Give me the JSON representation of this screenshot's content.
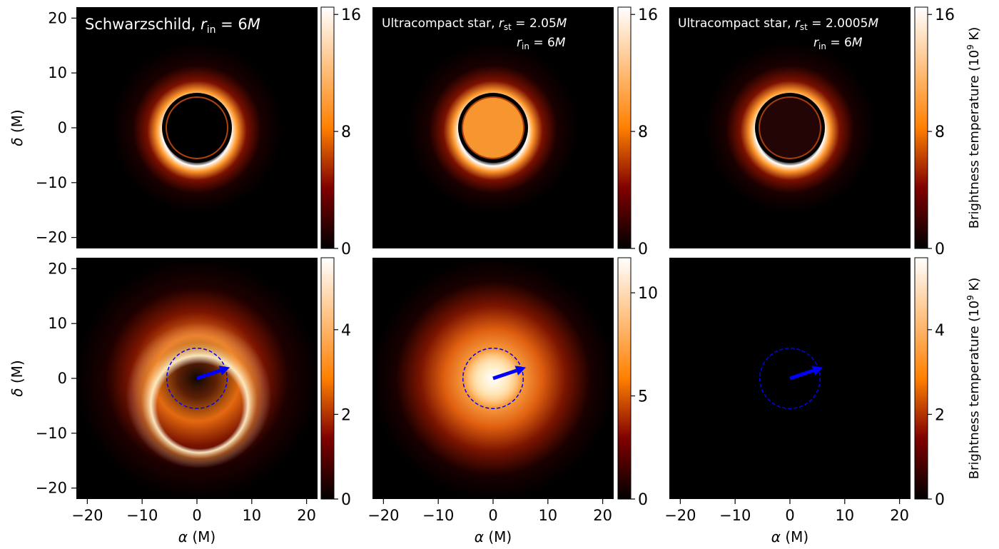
{
  "chart_data": {
    "type": "heatmap",
    "colormap": "afmhot",
    "layout": {
      "rows": 2,
      "cols": 3
    },
    "xlim": [
      -22,
      22
    ],
    "ylim": [
      -22,
      22
    ],
    "xticks": [
      -20,
      -10,
      0,
      10,
      20
    ],
    "yticks": [
      -20,
      -10,
      0,
      10,
      20
    ],
    "xtick_labels": [
      "−20",
      "−10",
      "0",
      "10",
      "20"
    ],
    "ytick_labels": [
      "−20",
      "−10",
      "0",
      "10",
      "20"
    ],
    "xlabel_var": "α",
    "xlabel_unit": " (M)",
    "ylabel_var": "δ",
    "ylabel_unit": " (M)",
    "colorbar_label_row1": "Brightness temperature (10",
    "colorbar_label_row2": "Brightness temperature (10",
    "colorbar_label_exp": "9",
    "colorbar_label_tail": " K)",
    "annotations": [
      {
        "text_main": "Schwarzschild, ",
        "r_in_var": "r",
        "r_in_sub": "in",
        "r_in_eq": " = 6",
        "r_in_M": "M"
      },
      {
        "text_main": "Ultracompact star, ",
        "r_st_var": "r",
        "r_st_sub": "st",
        "r_st_eq": " = 2.05",
        "r_st_M": "M",
        "r_in_var": "r",
        "r_in_sub": "in",
        "r_in_eq": " = 6",
        "r_in_M": "M"
      },
      {
        "text_main": "Ultracompact star, ",
        "r_st_var": "r",
        "r_st_sub": "st",
        "r_st_eq": " = 2.0005",
        "r_st_M": "M",
        "r_in_var": "r",
        "r_in_sub": "in",
        "r_in_eq": " = 6",
        "r_in_M": "M"
      }
    ],
    "panels": [
      {
        "row": 0,
        "col": 0,
        "model": "schwarzschild",
        "image": "thin-ring",
        "central_disk_value": 0,
        "cmax": 16.5,
        "colorbar_ticks": [
          0,
          8,
          16
        ],
        "colorbar_tick_labels": [
          "0",
          "8",
          "16"
        ]
      },
      {
        "row": 0,
        "col": 1,
        "model": "ultracompact-2.05",
        "image": "thin-ring",
        "central_disk_value": 10.7,
        "cmax": 16.5,
        "colorbar_ticks": [
          0,
          8,
          16
        ],
        "colorbar_tick_labels": [
          "0",
          "8",
          "16"
        ]
      },
      {
        "row": 0,
        "col": 2,
        "model": "ultracompact-2.0005",
        "image": "thin-ring",
        "central_disk_value": 1.1,
        "cmax": 16.5,
        "colorbar_ticks": [
          0,
          8,
          16
        ],
        "colorbar_tick_labels": [
          "0",
          "8",
          "16"
        ]
      },
      {
        "row": 1,
        "col": 0,
        "model": "schwarzschild",
        "image": "blurred",
        "peak": 5.7,
        "cmax": 5.7,
        "colorbar_ticks": [
          0,
          2,
          4
        ],
        "colorbar_tick_labels": [
          "0",
          "2",
          "4"
        ],
        "circle_radius": 5.5,
        "arrow": {
          "from": [
            0,
            0
          ],
          "to": [
            6,
            2
          ]
        }
      },
      {
        "row": 1,
        "col": 1,
        "model": "ultracompact-2.05",
        "image": "blurred",
        "peak": 11.7,
        "cmax": 11.7,
        "colorbar_ticks": [
          0,
          5,
          10
        ],
        "colorbar_tick_labels": [
          "0",
          "5",
          "10"
        ],
        "circle_radius": 5.5,
        "arrow": {
          "from": [
            0,
            0
          ],
          "to": [
            6,
            2
          ]
        }
      },
      {
        "row": 1,
        "col": 2,
        "model": "ultracompact-2.0005",
        "image": "blurred",
        "peak": 5.7,
        "cmax": 5.7,
        "colorbar_ticks": [
          0,
          2,
          4
        ],
        "colorbar_tick_labels": [
          "0",
          "2",
          "4"
        ],
        "circle_radius": 5.5,
        "arrow": {
          "from": [
            0,
            0
          ],
          "to": [
            6,
            2
          ]
        }
      }
    ],
    "overlay_color": "#0000ff",
    "annotation_color": "#ffffff",
    "background_color": "#000000"
  }
}
